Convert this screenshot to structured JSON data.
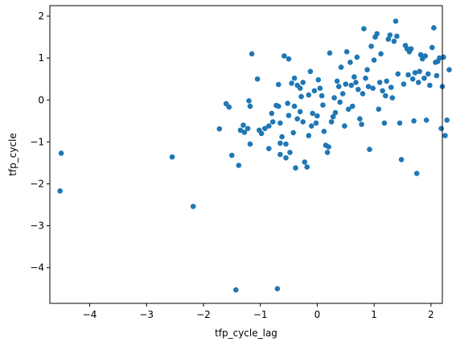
{
  "chart_data": {
    "type": "scatter",
    "title": "",
    "xlabel": "tfp_cycle_lag",
    "ylabel": "tfp_cycle",
    "xlim": [
      -4.7,
      2.2
    ],
    "ylim": [
      -4.85,
      2.25
    ],
    "xticks": [
      -4,
      -3,
      -2,
      -1,
      0,
      1,
      2
    ],
    "yticks": [
      -4,
      -3,
      -2,
      -1,
      0,
      1,
      2
    ],
    "xtick_labels": [
      "−4",
      "−3",
      "−2",
      "−1",
      "0",
      "1",
      "2"
    ],
    "ytick_labels": [
      "−4",
      "−3",
      "−2",
      "−1",
      "0",
      "1",
      "2"
    ],
    "grid": false,
    "color": "#1f77b4",
    "points": [
      [
        -4.5,
        -1.27
      ],
      [
        -4.52,
        -2.17
      ],
      [
        -2.55,
        -1.36
      ],
      [
        -2.18,
        -2.54
      ],
      [
        -1.43,
        -4.53
      ],
      [
        -0.7,
        -4.5
      ],
      [
        -1.72,
        -0.69
      ],
      [
        -1.6,
        -0.09
      ],
      [
        -1.55,
        -0.17
      ],
      [
        -1.5,
        -1.32
      ],
      [
        -1.38,
        -1.56
      ],
      [
        -1.35,
        -0.72
      ],
      [
        -1.3,
        -0.6
      ],
      [
        -1.28,
        -0.77
      ],
      [
        -1.22,
        -0.68
      ],
      [
        -1.2,
        -0.02
      ],
      [
        -1.18,
        -0.15
      ],
      [
        -1.18,
        -1.05
      ],
      [
        -1.15,
        1.1
      ],
      [
        -1.05,
        0.5
      ],
      [
        -1.02,
        -0.72
      ],
      [
        -0.98,
        -0.8
      ],
      [
        -0.92,
        -0.68
      ],
      [
        -0.85,
        -0.62
      ],
      [
        -0.85,
        -1.16
      ],
      [
        -0.8,
        -0.32
      ],
      [
        -0.78,
        -0.52
      ],
      [
        -0.72,
        -0.13
      ],
      [
        -0.68,
        -0.15
      ],
      [
        -0.65,
        -0.55
      ],
      [
        -0.65,
        -1.03
      ],
      [
        -0.65,
        -1.3
      ],
      [
        -0.68,
        0.37
      ],
      [
        -0.62,
        -0.88
      ],
      [
        -0.58,
        1.05
      ],
      [
        -0.55,
        -1.05
      ],
      [
        -0.55,
        -1.38
      ],
      [
        -0.52,
        -0.08
      ],
      [
        -0.5,
        -0.37
      ],
      [
        -0.5,
        0.98
      ],
      [
        -0.48,
        -1.25
      ],
      [
        -0.45,
        0.4
      ],
      [
        -0.42,
        -0.78
      ],
      [
        -0.4,
        -0.15
      ],
      [
        -0.4,
        0.52
      ],
      [
        -0.38,
        -1.62
      ],
      [
        -0.35,
        -0.45
      ],
      [
        -0.35,
        0.35
      ],
      [
        -0.3,
        -0.28
      ],
      [
        -0.3,
        0.28
      ],
      [
        -0.28,
        0.08
      ],
      [
        -0.25,
        -0.52
      ],
      [
        -0.25,
        0.42
      ],
      [
        -0.22,
        -1.48
      ],
      [
        -0.18,
        -1.6
      ],
      [
        -0.15,
        0.12
      ],
      [
        -0.15,
        -0.85
      ],
      [
        -0.12,
        0.68
      ],
      [
        -0.1,
        -0.62
      ],
      [
        -0.08,
        -0.32
      ],
      [
        -0.05,
        0.22
      ],
      [
        -0.02,
        -0.55
      ],
      [
        0.0,
        -0.38
      ],
      [
        0.02,
        0.48
      ],
      [
        0.05,
        0.28
      ],
      [
        0.08,
        0.1
      ],
      [
        0.1,
        -0.12
      ],
      [
        0.12,
        -0.75
      ],
      [
        0.15,
        -1.08
      ],
      [
        0.18,
        -1.25
      ],
      [
        0.2,
        -1.12
      ],
      [
        0.22,
        1.12
      ],
      [
        0.25,
        -0.52
      ],
      [
        0.28,
        -0.4
      ],
      [
        0.3,
        0.05
      ],
      [
        0.32,
        -0.3
      ],
      [
        0.35,
        0.45
      ],
      [
        0.38,
        0.32
      ],
      [
        0.4,
        -0.05
      ],
      [
        0.42,
        0.78
      ],
      [
        0.45,
        0.15
      ],
      [
        0.48,
        -0.62
      ],
      [
        0.5,
        0.38
      ],
      [
        0.52,
        1.15
      ],
      [
        0.55,
        -0.22
      ],
      [
        0.58,
        0.9
      ],
      [
        0.6,
        0.35
      ],
      [
        0.62,
        -0.15
      ],
      [
        0.65,
        0.55
      ],
      [
        0.68,
        0.42
      ],
      [
        0.7,
        1.02
      ],
      [
        0.72,
        0.25
      ],
      [
        0.75,
        -0.45
      ],
      [
        0.78,
        -0.58
      ],
      [
        0.8,
        0.15
      ],
      [
        0.82,
        1.7
      ],
      [
        0.85,
        0.52
      ],
      [
        0.88,
        0.72
      ],
      [
        0.9,
        0.32
      ],
      [
        0.92,
        -1.18
      ],
      [
        0.95,
        1.28
      ],
      [
        0.98,
        0.28
      ],
      [
        1.0,
        0.95
      ],
      [
        1.02,
        1.5
      ],
      [
        1.05,
        1.58
      ],
      [
        1.08,
        -0.22
      ],
      [
        1.1,
        0.42
      ],
      [
        1.12,
        1.1
      ],
      [
        1.15,
        0.22
      ],
      [
        1.18,
        -0.55
      ],
      [
        1.2,
        0.1
      ],
      [
        1.22,
        0.45
      ],
      [
        1.25,
        1.45
      ],
      [
        1.28,
        1.55
      ],
      [
        1.3,
        0.3
      ],
      [
        1.32,
        0.05
      ],
      [
        1.35,
        1.4
      ],
      [
        1.38,
        1.88
      ],
      [
        1.4,
        1.52
      ],
      [
        1.42,
        0.62
      ],
      [
        1.45,
        -0.55
      ],
      [
        1.48,
        -1.42
      ],
      [
        1.52,
        0.38
      ],
      [
        1.55,
        1.3
      ],
      [
        1.58,
        1.22
      ],
      [
        1.6,
        0.6
      ],
      [
        1.62,
        1.15
      ],
      [
        1.65,
        1.22
      ],
      [
        1.68,
        0.5
      ],
      [
        1.7,
        -0.5
      ],
      [
        1.72,
        0.65
      ],
      [
        1.75,
        -1.75
      ],
      [
        1.78,
        0.42
      ],
      [
        1.8,
        0.68
      ],
      [
        1.82,
        1.08
      ],
      [
        1.85,
        0.98
      ],
      [
        1.88,
        0.52
      ],
      [
        1.9,
        1.05
      ],
      [
        1.92,
        -0.48
      ],
      [
        1.95,
        0.62
      ],
      [
        1.98,
        0.35
      ],
      [
        2.02,
        1.25
      ],
      [
        2.05,
        1.72
      ],
      [
        2.08,
        0.9
      ],
      [
        2.1,
        0.58
      ],
      [
        2.12,
        0.92
      ],
      [
        2.15,
        1.0
      ],
      [
        2.18,
        -0.68
      ],
      [
        2.2,
        0.32
      ],
      [
        2.22,
        1.02
      ],
      [
        2.25,
        -0.85
      ],
      [
        2.28,
        -0.48
      ],
      [
        2.32,
        0.72
      ]
    ]
  }
}
